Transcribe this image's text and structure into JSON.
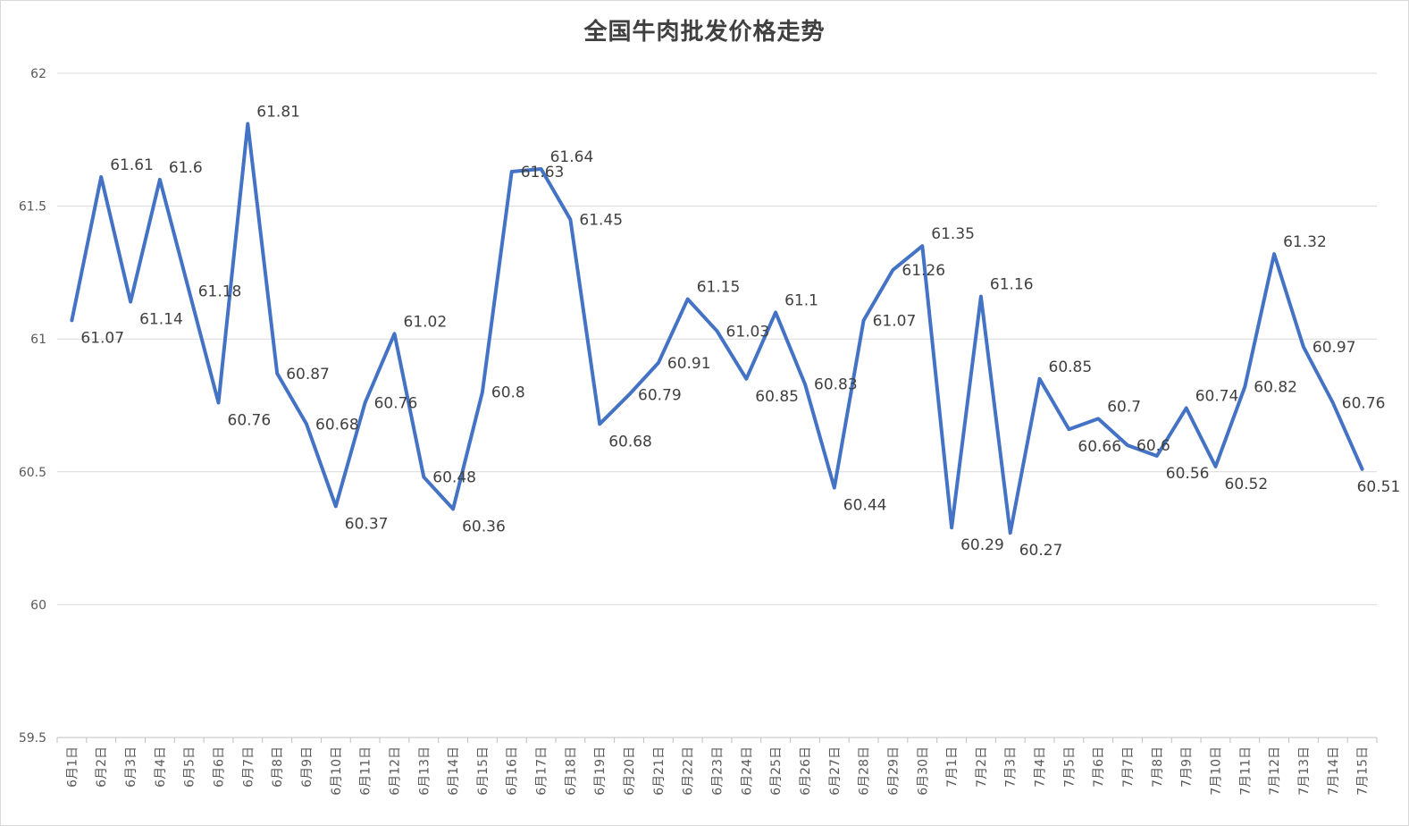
{
  "chart_data": {
    "type": "line",
    "title": "全国牛肉批发价格走势",
    "xlabel": "",
    "ylabel": "",
    "ylim": [
      59.5,
      62
    ],
    "ytick_labels": [
      "59.5",
      "60",
      "60.5",
      "61",
      "61.5",
      "62"
    ],
    "grid": true,
    "legend": "none",
    "categories": [
      "6月1日",
      "6月2日",
      "6月3日",
      "6月4日",
      "6月5日",
      "6月6日",
      "6月7日",
      "6月8日",
      "6月9日",
      "6月10日",
      "6月11日",
      "6月12日",
      "6月13日",
      "6月14日",
      "6月15日",
      "6月16日",
      "6月17日",
      "6月18日",
      "6月19日",
      "6月20日",
      "6月21日",
      "6月22日",
      "6月23日",
      "6月24日",
      "6月25日",
      "6月26日",
      "6月27日",
      "6月28日",
      "6月29日",
      "6月30日",
      "7月1日",
      "7月2日",
      "7月3日",
      "7月4日",
      "7月5日",
      "7月6日",
      "7月7日",
      "7月8日",
      "7月9日",
      "7月10日",
      "7月11日",
      "7月12日",
      "7月13日",
      "7月14日",
      "7月15日"
    ],
    "values": [
      61.07,
      61.61,
      61.14,
      61.6,
      61.18,
      60.76,
      61.81,
      60.87,
      60.68,
      60.37,
      60.76,
      61.02,
      60.48,
      60.36,
      60.8,
      61.63,
      61.64,
      61.45,
      60.68,
      60.79,
      60.91,
      61.15,
      61.03,
      60.85,
      61.1,
      60.83,
      60.44,
      61.07,
      61.26,
      61.35,
      60.29,
      61.16,
      60.27,
      60.85,
      60.66,
      60.7,
      60.6,
      60.56,
      60.74,
      60.52,
      60.82,
      61.32,
      60.97,
      60.76,
      60.51
    ],
    "line_color": "#4472C4",
    "grid_color": "#d9d9d9"
  }
}
